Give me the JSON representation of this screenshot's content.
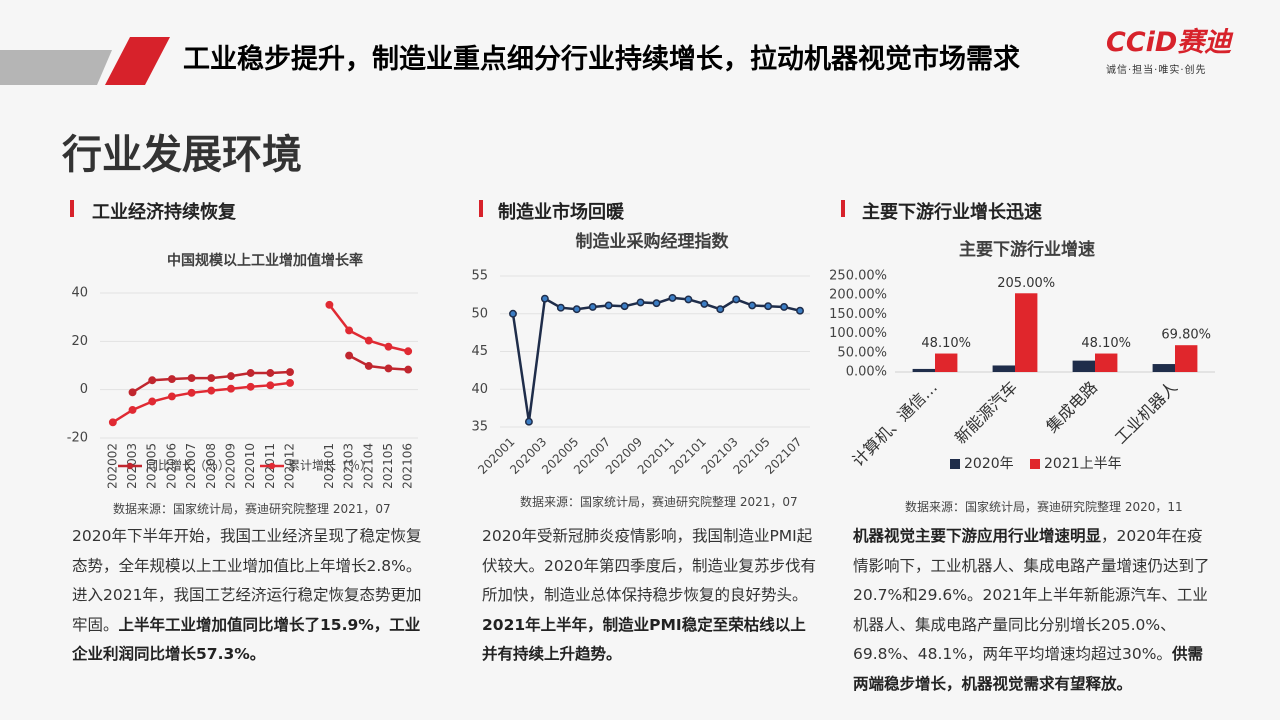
{
  "logo": {
    "name": "CCiD赛迪",
    "motto": "诚信·担当·唯实·创先"
  },
  "header": {
    "title": "工业稳步提升，制造业重点细分行业持续增长，拉动机器视觉市场需求",
    "subtitle": "行业发展环境"
  },
  "sections": [
    {
      "heading": "工业经济持续恢复",
      "source": "数据来源：国家统计局，赛迪研究院整理 2021，07",
      "paragraph": [
        {
          "text": "2020年下半年开始，我国工业经济呈现了稳定恢复态势，全年规模以上工业增加值比上年增长2.8%。进入2021年，我国工艺经济运行稳定恢复态势更加牢固。",
          "bold": false
        },
        {
          "text": "上半年工业增加值同比增长了15.9%，工业企业利润同比增长57.3%。",
          "bold": true
        }
      ]
    },
    {
      "heading": "制造业市场回暖",
      "source": "数据来源：国家统计局，赛迪研究院整理 2021，07",
      "paragraph": [
        {
          "text": "2020年受新冠肺炎疫情影响，我国制造业PMI起伏较大。2020年第四季度后，制造业复苏步伐有所加快，制造业总体保持稳步恢复的良好势头。",
          "bold": false
        },
        {
          "text": "2021年上半年，制造业PMI稳定至荣枯线以上并有持续上升趋势。",
          "bold": true
        }
      ]
    },
    {
      "heading": "主要下游行业增长迅速",
      "source": "数据来源：国家统计局，赛迪研究院整理 2020，11",
      "paragraph": [
        {
          "text": "机器视觉主要下游应用行业增速明显",
          "bold": true
        },
        {
          "text": "，2020年在疫情影响下，工业机器人、集成电路产量增速仍达到了20.7%和29.6%。2021年上半年新能源汽车、工业机器人、集成电路产量同比分别增长205.0%、69.8%、48.1%，两年平均增速均超过30%。",
          "bold": false
        },
        {
          "text": "供需两端稳步增长，机器视觉需求有望释放。",
          "bold": true
        }
      ]
    }
  ],
  "chart_data": [
    {
      "type": "line",
      "title": "中国规模以上工业增加值增长率",
      "categories": [
        "202002",
        "202003",
        "202005",
        "202006",
        "202007",
        "202008",
        "202009",
        "202010",
        "202011",
        "202012",
        null,
        "202101",
        "202103",
        "202104",
        "202105",
        "202106"
      ],
      "series": [
        {
          "name": "同比增长（％）",
          "color": "#c0262e",
          "values": [
            null,
            -1.1,
            3.9,
            4.4,
            4.8,
            4.8,
            5.6,
            6.9,
            6.9,
            7.3,
            null,
            null,
            14.1,
            9.8,
            8.8,
            8.3
          ]
        },
        {
          "name": "累计增长（％）",
          "color": "#e02a33",
          "values": [
            -13.5,
            -8.4,
            -4.9,
            -2.8,
            -1.3,
            -0.4,
            0.4,
            1.2,
            1.8,
            2.8,
            null,
            35.1,
            24.5,
            20.3,
            17.8,
            15.9
          ]
        }
      ],
      "ylim": [
        -20,
        40
      ],
      "yticks": [
        -20,
        0,
        20,
        40
      ],
      "grid": true
    },
    {
      "type": "line",
      "title": "制造业采购经理指数",
      "categories": [
        "202001",
        null,
        "202003",
        null,
        "202005",
        null,
        "202007",
        null,
        "202009",
        null,
        "202011",
        null,
        "202101",
        null,
        "202103",
        null,
        "202105",
        null,
        "202107"
      ],
      "series": [
        {
          "name": "PMI",
          "color": "#1f2d4a",
          "values": [
            50.0,
            35.7,
            52.0,
            50.8,
            50.6,
            50.9,
            51.1,
            51.0,
            51.5,
            51.4,
            52.1,
            51.9,
            51.3,
            50.6,
            51.9,
            51.1,
            51.0,
            50.9,
            50.4
          ]
        }
      ],
      "ylim": [
        35,
        55
      ],
      "yticks": [
        35,
        40,
        45,
        50,
        55
      ],
      "grid": true
    },
    {
      "type": "bar",
      "title": "主要下游行业增速",
      "categories": [
        "计算机、通信…",
        "新能源汽车",
        "集成电路",
        "工业机器人"
      ],
      "series": [
        {
          "name": "2020年",
          "color": "#1f2d4a",
          "values": [
            8,
            17,
            29.6,
            20.7
          ]
        },
        {
          "name": "2021上半年",
          "color": "#e0262c",
          "values": [
            48.1,
            205,
            48.1,
            69.8
          ],
          "value_labels": [
            "48.10%",
            "205.00%",
            "48.10%",
            "69.80%"
          ]
        }
      ],
      "ylim": [
        0,
        250
      ],
      "yticks": [
        {
          "value": 0,
          "label": "0.00%"
        },
        {
          "value": 50,
          "label": "50.00%"
        },
        {
          "value": 100,
          "label": "100.00%"
        },
        {
          "value": 150,
          "label": "150.00%"
        },
        {
          "value": 200,
          "label": "200.00%"
        },
        {
          "value": 250,
          "label": "250.00%"
        }
      ],
      "grid": false
    }
  ]
}
